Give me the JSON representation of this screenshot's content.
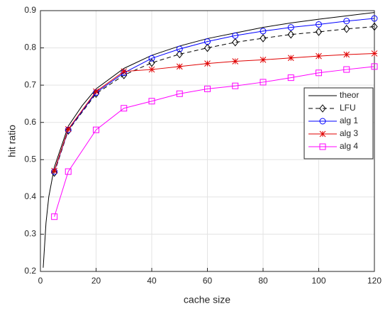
{
  "chart_data": {
    "type": "line",
    "xlabel": "cache size",
    "ylabel": "hit ratio",
    "xlim": [
      0,
      120
    ],
    "ylim": [
      0.2,
      0.9
    ],
    "xticks": [
      0,
      20,
      40,
      60,
      80,
      100,
      120
    ],
    "yticks": [
      0.2,
      0.3,
      0.4,
      0.5,
      0.6,
      0.7,
      0.8,
      0.9
    ],
    "grid": true,
    "legend": "east",
    "series": [
      {
        "name": "theor",
        "color": "#000000",
        "dash": false,
        "marker": "none",
        "x": [
          1,
          2,
          3,
          5,
          10,
          15,
          20,
          30,
          40,
          50,
          60,
          70,
          80,
          90,
          100,
          110,
          120
        ],
        "values": [
          0.21,
          0.33,
          0.4,
          0.48,
          0.59,
          0.645,
          0.69,
          0.745,
          0.78,
          0.805,
          0.825,
          0.84,
          0.855,
          0.867,
          0.877,
          0.886,
          0.895
        ]
      },
      {
        "name": "LFU",
        "color": "#000000",
        "dash": true,
        "marker": "diamond",
        "x": [
          5,
          10,
          20,
          30,
          40,
          50,
          60,
          70,
          80,
          90,
          100,
          110,
          120
        ],
        "values": [
          0.465,
          0.578,
          0.677,
          0.727,
          0.76,
          0.783,
          0.8,
          0.815,
          0.826,
          0.836,
          0.843,
          0.851,
          0.857
        ]
      },
      {
        "name": "alg 1",
        "color": "#0000ff",
        "dash": false,
        "marker": "circle",
        "x": [
          5,
          10,
          20,
          30,
          40,
          50,
          60,
          70,
          80,
          90,
          100,
          110,
          120
        ],
        "values": [
          0.468,
          0.58,
          0.68,
          0.733,
          0.772,
          0.797,
          0.817,
          0.833,
          0.845,
          0.855,
          0.863,
          0.872,
          0.879
        ]
      },
      {
        "name": "alg 3",
        "color": "#e00000",
        "dash": false,
        "marker": "star",
        "x": [
          5,
          10,
          20,
          30,
          40,
          50,
          60,
          70,
          80,
          90,
          100,
          110,
          120
        ],
        "values": [
          0.47,
          0.582,
          0.683,
          0.737,
          0.742,
          0.75,
          0.758,
          0.764,
          0.768,
          0.773,
          0.778,
          0.782,
          0.785
        ]
      },
      {
        "name": "alg 4",
        "color": "#ff00ff",
        "dash": false,
        "marker": "square",
        "x": [
          5,
          10,
          20,
          30,
          40,
          50,
          60,
          70,
          80,
          90,
          100,
          110,
          120
        ],
        "values": [
          0.347,
          0.468,
          0.58,
          0.638,
          0.657,
          0.677,
          0.69,
          0.698,
          0.708,
          0.72,
          0.733,
          0.742,
          0.75
        ]
      }
    ]
  }
}
